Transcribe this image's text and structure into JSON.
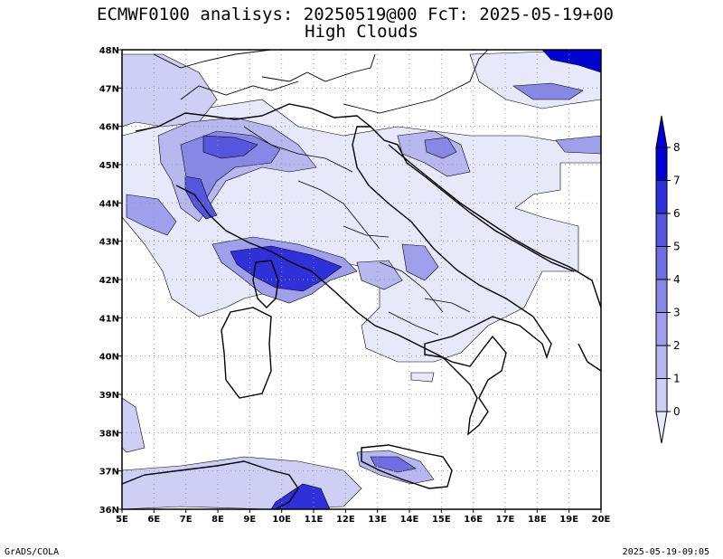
{
  "title": {
    "line1": "ECMWF0100 analisys: 20250519@00 FcT: 2025-05-19+00",
    "line2": "High Clouds"
  },
  "map": {
    "lon_range": [
      5,
      20
    ],
    "lat_range": [
      36,
      48
    ],
    "lon_ticks": [
      "5E",
      "6E",
      "7E",
      "8E",
      "9E",
      "10E",
      "11E",
      "12E",
      "13E",
      "14E",
      "15E",
      "16E",
      "17E",
      "18E",
      "19E",
      "20E"
    ],
    "lat_ticks": [
      "36N",
      "37N",
      "38N",
      "39N",
      "40N",
      "41N",
      "42N",
      "43N",
      "44N",
      "45N",
      "46N",
      "47N",
      "48N"
    ],
    "grid": true,
    "grid_style": "dotted"
  },
  "colorbar": {
    "labels": [
      "0",
      "1",
      "2",
      "3",
      "4",
      "5",
      "6",
      "7",
      "8"
    ],
    "colors": [
      "#e8e8fb",
      "#cfcff5",
      "#b8b8f0",
      "#9f9feb",
      "#8787e6",
      "#6e6ee2",
      "#5555de",
      "#3030d8",
      "#0000d0"
    ]
  },
  "footer": {
    "left": "GrADS/COLA",
    "right": "2025-05-19-09:05"
  }
}
